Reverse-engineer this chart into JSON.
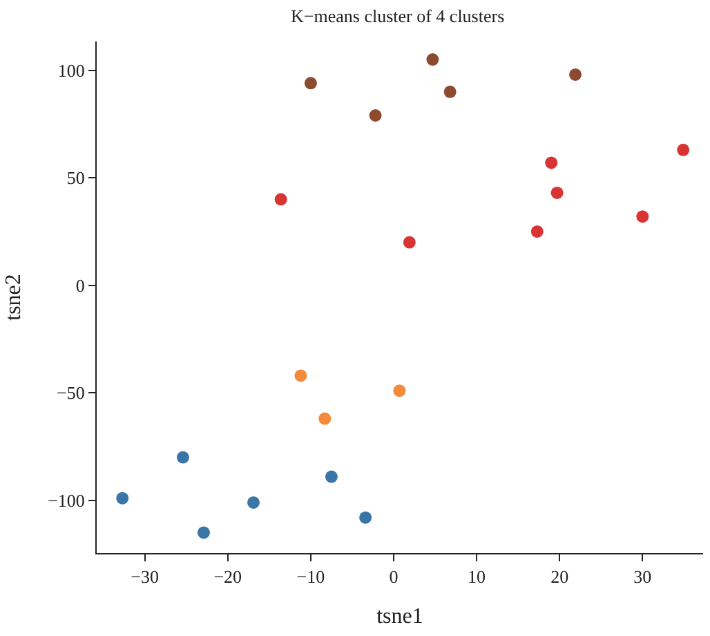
{
  "chart_data": {
    "type": "scatter",
    "title": "K−means cluster of 4 clusters",
    "xlabel": "tsne1",
    "ylabel": "tsne2",
    "xlim": [
      -35.8,
      37.3
    ],
    "xticks": [
      -30,
      -20,
      -10,
      0,
      10,
      20,
      30
    ],
    "ylim": [
      -124.5,
      113.4
    ],
    "yticks": [
      -100,
      -50,
      0,
      50,
      100
    ],
    "marker": "circle",
    "series": [
      {
        "color": "#8c4a2e",
        "x": [
          -10.0,
          -2.2,
          4.7,
          6.8,
          21.9
        ],
        "values": [
          94,
          79,
          105,
          90,
          98
        ]
      },
      {
        "color": "#d93434",
        "x": [
          -13.6,
          1.9,
          19.0,
          19.7,
          17.3,
          30.0,
          34.9
        ],
        "values": [
          40,
          20,
          57,
          43,
          25,
          32,
          63
        ]
      },
      {
        "color": "#f28a3a",
        "x": [
          -11.2,
          -8.3,
          0.7
        ],
        "values": [
          -42,
          -62,
          -49
        ]
      },
      {
        "color": "#3a75a8",
        "x": [
          -32.7,
          -25.4,
          -22.9,
          -16.9,
          -7.5,
          -3.4
        ],
        "values": [
          -99,
          -80,
          -115,
          -101,
          -89,
          -108
        ]
      }
    ]
  }
}
